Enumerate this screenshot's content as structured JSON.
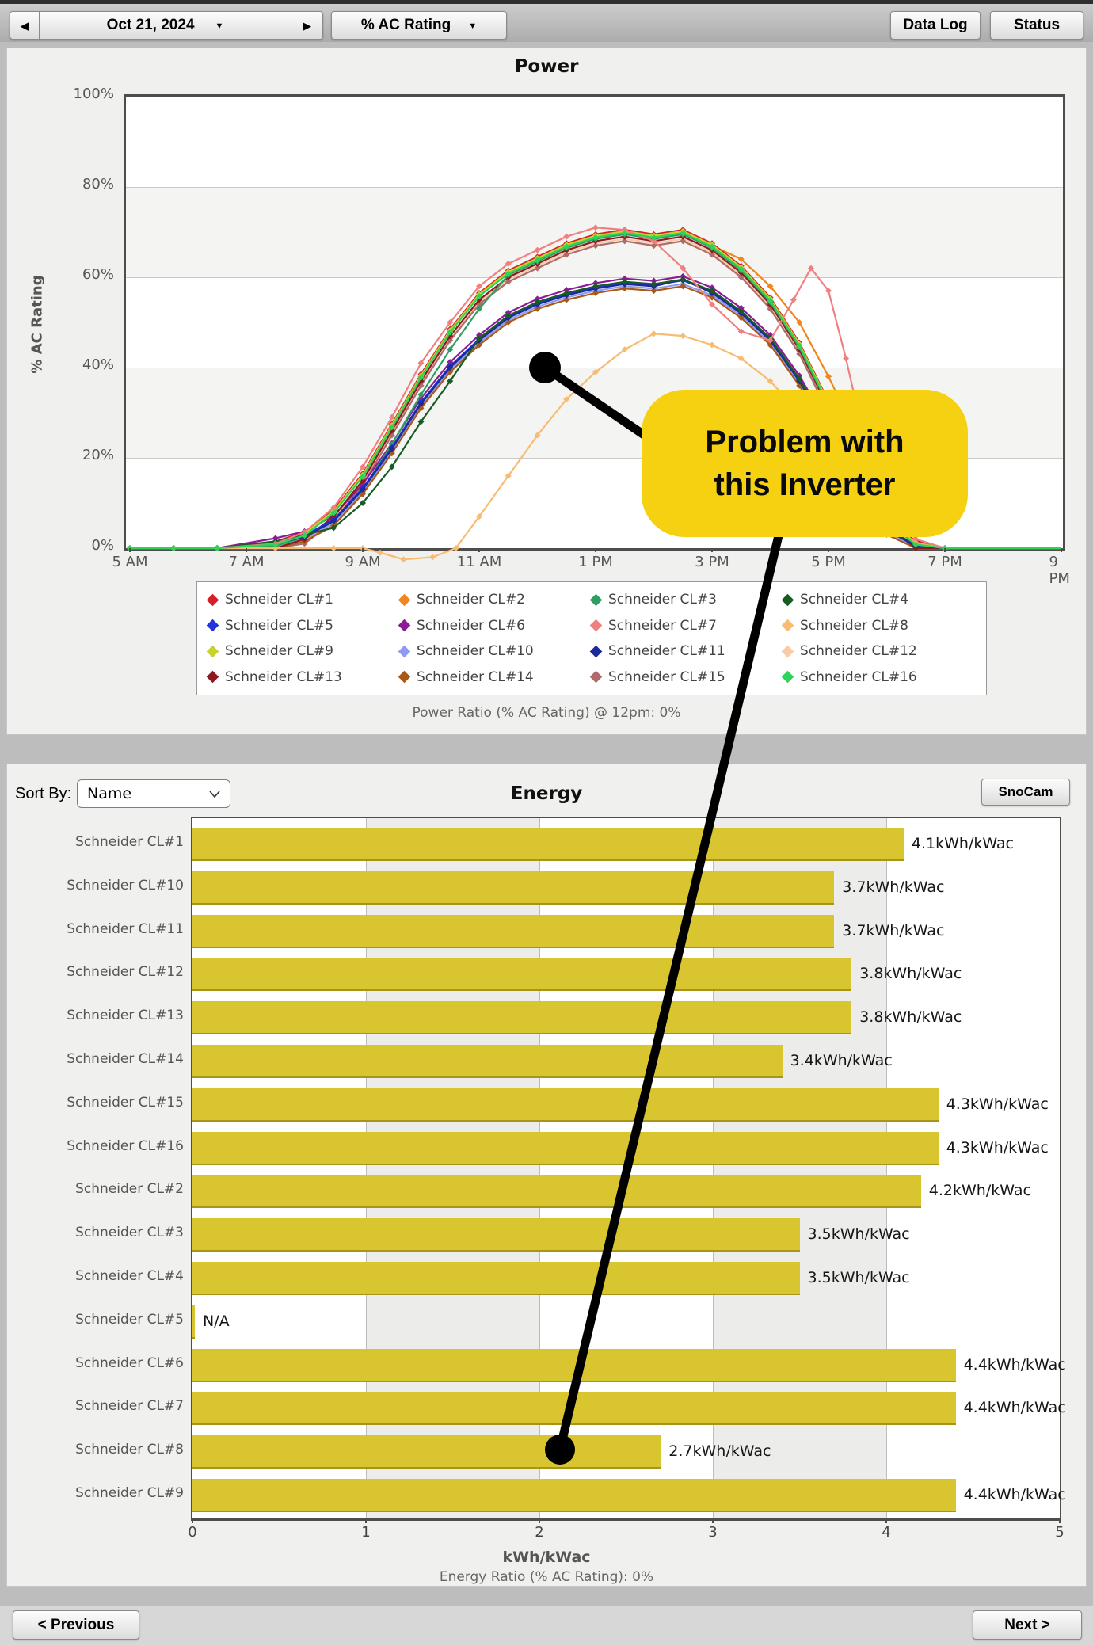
{
  "toolbar": {
    "prev_day": "◀",
    "date": "Oct 21, 2024",
    "date_dropdown": "▼",
    "next_day": "▶",
    "metric": "% AC Rating",
    "metric_dropdown": "▼",
    "data_log": "Data Log",
    "status": "Status"
  },
  "callout": {
    "line1": "Problem with",
    "line2": "this Inverter"
  },
  "energy_header": {
    "sort_by_label": "Sort By:",
    "sort_by_value": "Name",
    "snocam": "SnoCam"
  },
  "footer": {
    "previous": "< Previous",
    "next": "Next >"
  },
  "ui_colors": {
    "callout_yellow": "#f6d112",
    "bar_yellow": "#d9c530",
    "connector_black": "#000000"
  },
  "chart_data": [
    {
      "type": "line",
      "title": "Power",
      "ylabel": "% AC Rating",
      "ylim": [
        0,
        100
      ],
      "yticklabels": [
        "100%",
        "80%",
        "60%",
        "40%",
        "20%",
        "0%"
      ],
      "xticklabels": [
        "5 AM",
        "7 AM",
        "9 AM",
        "11 AM",
        "1 PM",
        "3 PM",
        "5 PM",
        "7 PM",
        "9 PM"
      ],
      "xtick_hours": [
        5,
        7,
        9,
        11,
        13,
        15,
        17,
        19,
        21
      ],
      "footnote": "Power Ratio (% AC Rating) @ 12pm: 0%",
      "grid": true,
      "legend_position": "bottom",
      "profiles": {
        "U": [
          [
            5,
            0
          ],
          [
            5.75,
            0
          ],
          [
            6.5,
            0
          ],
          [
            7.5,
            1
          ],
          [
            8,
            3
          ],
          [
            8.5,
            8
          ],
          [
            9,
            16
          ],
          [
            9.5,
            27
          ],
          [
            10,
            38
          ],
          [
            10.5,
            48
          ],
          [
            11,
            56
          ],
          [
            11.5,
            61
          ],
          [
            12,
            64
          ],
          [
            12.5,
            67
          ],
          [
            13,
            69
          ],
          [
            13.5,
            70
          ],
          [
            14,
            69
          ],
          [
            14.5,
            70
          ],
          [
            15,
            67
          ],
          [
            15.5,
            62
          ],
          [
            16,
            55
          ],
          [
            16.5,
            45
          ],
          [
            17,
            32
          ],
          [
            17.3,
            24
          ],
          [
            17.7,
            12
          ],
          [
            18,
            6
          ],
          [
            18.5,
            1
          ],
          [
            19,
            0
          ],
          [
            21,
            0
          ]
        ],
        "L": [
          [
            5,
            0
          ],
          [
            5.75,
            0
          ],
          [
            6.5,
            0
          ],
          [
            7.5,
            1
          ],
          [
            8,
            2.5
          ],
          [
            8.5,
            6
          ],
          [
            9,
            13
          ],
          [
            9.5,
            22
          ],
          [
            10,
            32
          ],
          [
            10.5,
            40
          ],
          [
            11,
            46
          ],
          [
            11.5,
            51
          ],
          [
            12,
            54
          ],
          [
            12.5,
            56
          ],
          [
            13,
            57.5
          ],
          [
            13.5,
            58.5
          ],
          [
            14,
            58
          ],
          [
            14.5,
            59
          ],
          [
            15,
            56.5
          ],
          [
            15.5,
            52
          ],
          [
            16,
            46
          ],
          [
            16.5,
            37
          ],
          [
            17,
            26
          ],
          [
            17.3,
            19
          ],
          [
            17.7,
            9
          ],
          [
            18,
            4
          ],
          [
            18.5,
            0.5
          ],
          [
            19,
            0
          ],
          [
            21,
            0
          ]
        ]
      },
      "series": [
        {
          "name": "Schneider CL#1",
          "color": "#d62029",
          "base": "U",
          "dv": 0.5
        },
        {
          "name": "Schneider CL#2",
          "color": "#f0871e",
          "base": "U",
          "dv": 0,
          "overrides": [
            [
              15.5,
              64
            ],
            [
              16,
              58
            ],
            [
              16.5,
              50
            ],
            [
              17,
              38
            ],
            [
              17.3,
              30
            ],
            [
              17.7,
              16
            ],
            [
              18,
              7
            ]
          ]
        },
        {
          "name": "Schneider CL#3",
          "color": "#2e9e62",
          "base": "U",
          "dv": -0.5,
          "overrides": [
            [
              8.5,
              6
            ],
            [
              9,
              13
            ],
            [
              9.5,
              23
            ],
            [
              10,
              34
            ],
            [
              10.5,
              44
            ],
            [
              11,
              53
            ]
          ]
        },
        {
          "name": "Schneider CL#4",
          "color": "#175c23",
          "base": "L",
          "dv": 0.5,
          "overrides": [
            [
              8.5,
              4.5
            ],
            [
              9,
              10
            ],
            [
              9.5,
              18
            ],
            [
              10,
              28
            ],
            [
              10.5,
              37
            ]
          ]
        },
        {
          "name": "Schneider CL#5",
          "color": "#2334dd",
          "base": "L",
          "dv": 0.3
        },
        {
          "name": "Schneider CL#6",
          "color": "#8a1d96",
          "base": "L",
          "dv": 1.2
        },
        {
          "name": "Schneider CL#7",
          "color": "#f08080",
          "points": [
            [
              5,
              0
            ],
            [
              5.75,
              0
            ],
            [
              6.5,
              0
            ],
            [
              7.5,
              1
            ],
            [
              8,
              3.5
            ],
            [
              8.5,
              9
            ],
            [
              9,
              18
            ],
            [
              9.5,
              29
            ],
            [
              10,
              41
            ],
            [
              10.5,
              50
            ],
            [
              11,
              58
            ],
            [
              11.5,
              63
            ],
            [
              12,
              66
            ],
            [
              12.5,
              69
            ],
            [
              13,
              71
            ],
            [
              13.5,
              70.5
            ],
            [
              14,
              68
            ],
            [
              14.5,
              62
            ],
            [
              15,
              54
            ],
            [
              15.5,
              48
            ],
            [
              16,
              46
            ],
            [
              16.4,
              55
            ],
            [
              16.7,
              62
            ],
            [
              17,
              57
            ],
            [
              17.3,
              42
            ],
            [
              17.6,
              25
            ],
            [
              18,
              10
            ],
            [
              18.5,
              2
            ],
            [
              19,
              0
            ],
            [
              21,
              0
            ]
          ]
        },
        {
          "name": "Schneider CL#8",
          "color": "#f7bc71",
          "points": [
            [
              5,
              0
            ],
            [
              5.75,
              0
            ],
            [
              6.5,
              0
            ],
            [
              7.5,
              0
            ],
            [
              8.5,
              0
            ],
            [
              9,
              0
            ],
            [
              9.3,
              -1
            ],
            [
              9.7,
              -2.5
            ],
            [
              10.2,
              -2
            ],
            [
              10.6,
              0
            ],
            [
              11,
              7
            ],
            [
              11.5,
              16
            ],
            [
              12,
              25
            ],
            [
              12.5,
              33
            ],
            [
              13,
              39
            ],
            [
              13.5,
              44
            ],
            [
              14,
              47.5
            ],
            [
              14.5,
              47
            ],
            [
              15,
              45
            ],
            [
              15.5,
              42
            ],
            [
              16,
              37
            ],
            [
              16.5,
              30
            ],
            [
              17,
              22
            ],
            [
              17.5,
              13
            ],
            [
              18,
              5
            ],
            [
              18.5,
              1
            ],
            [
              19,
              0
            ],
            [
              21,
              0
            ]
          ]
        },
        {
          "name": "Schneider CL#9",
          "color": "#c8d22b",
          "base": "U",
          "dv": 0.2
        },
        {
          "name": "Schneider CL#10",
          "color": "#8f9bf0",
          "base": "L",
          "dv": -0.5
        },
        {
          "name": "Schneider CL#11",
          "color": "#1b2a99",
          "base": "L",
          "dv": 0,
          "overrides": [
            [
              14.5,
              59.5
            ]
          ]
        },
        {
          "name": "Schneider CL#12",
          "color": "#f5cbaa",
          "base": "U",
          "dv": -1.5
        },
        {
          "name": "Schneider CL#13",
          "color": "#8c1a20",
          "base": "U",
          "dv": -1
        },
        {
          "name": "Schneider CL#14",
          "color": "#a85918",
          "base": "L",
          "dv": -1
        },
        {
          "name": "Schneider CL#15",
          "color": "#b06a6a",
          "base": "U",
          "dv": -2
        },
        {
          "name": "Schneider CL#16",
          "color": "#2ed358",
          "base": "U",
          "dv": -0.2
        }
      ],
      "draw_order": [
        "Schneider CL#12",
        "Schneider CL#15",
        "Schneider CL#10",
        "Schneider CL#14",
        "Schneider CL#6",
        "Schneider CL#13",
        "Schneider CL#2",
        "Schneider CL#1",
        "Schneider CL#9",
        "Schneider CL#3",
        "Schneider CL#5",
        "Schneider CL#11",
        "Schneider CL#4",
        "Schneider CL#7",
        "Schneider CL#8",
        "Schneider CL#16"
      ]
    },
    {
      "type": "bar",
      "title": "Energy",
      "xlabel": "kWh/kWac",
      "xlim": [
        0,
        5
      ],
      "xticklabels": [
        "0",
        "1",
        "2",
        "3",
        "4",
        "5"
      ],
      "footnote": "Energy Ratio (% AC Rating): 0%",
      "bar_color": "#d9c530",
      "categories": [
        "Schneider CL#1",
        "Schneider CL#10",
        "Schneider CL#11",
        "Schneider CL#12",
        "Schneider CL#13",
        "Schneider CL#14",
        "Schneider CL#15",
        "Schneider CL#16",
        "Schneider CL#2",
        "Schneider CL#3",
        "Schneider CL#4",
        "Schneider CL#5",
        "Schneider CL#6",
        "Schneider CL#7",
        "Schneider CL#8",
        "Schneider CL#9"
      ],
      "values": [
        4.1,
        3.7,
        3.7,
        3.8,
        3.8,
        3.4,
        4.3,
        4.3,
        4.2,
        3.5,
        3.5,
        null,
        4.4,
        4.4,
        2.7,
        4.4
      ],
      "value_labels": [
        "4.1kWh/kWac",
        "3.7kWh/kWac",
        "3.7kWh/kWac",
        "3.8kWh/kWac",
        "3.8kWh/kWac",
        "3.4kWh/kWac",
        "4.3kWh/kWac",
        "4.3kWh/kWac",
        "4.2kWh/kWac",
        "3.5kWh/kWac",
        "3.5kWh/kWac",
        "N/A",
        "4.4kWh/kWac",
        "4.4kWh/kWac",
        "2.7kWh/kWac",
        "4.4kWh/kWac"
      ]
    }
  ]
}
